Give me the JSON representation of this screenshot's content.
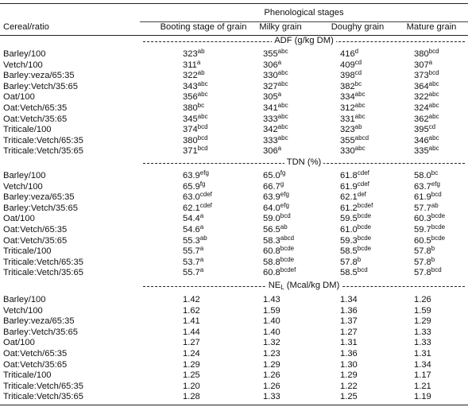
{
  "header": {
    "first_col": "Cereal/ratio",
    "group_title": "Phenological stages",
    "stages": [
      "Booting stage of grain",
      "Milky grain",
      "Doughy grain",
      "Mature grain"
    ]
  },
  "rows": [
    "Barley/100",
    "Vetch/100",
    "Barley:veza/65:35",
    "Barley:Vetch/35:65",
    "Oat/100",
    "Oat:Vetch/65:35",
    "Oat:Vetch/35:65",
    "Triticale/100",
    "Triticale:Vetch/65:35",
    "Triticale:Vetch/35:65"
  ],
  "sections": [
    {
      "title": "ADF (g/kg DM)",
      "title_main": "ADF",
      "title_sub": "",
      "title_unit": "(g/kg DM)",
      "values": [
        [
          [
            "323",
            "ab"
          ],
          [
            "355",
            "abc"
          ],
          [
            "416",
            "d"
          ],
          [
            "380",
            "bcd"
          ]
        ],
        [
          [
            "311",
            "a"
          ],
          [
            "306",
            "a"
          ],
          [
            "409",
            "cd"
          ],
          [
            "307",
            "a"
          ]
        ],
        [
          [
            "322",
            "ab"
          ],
          [
            "330",
            "abc"
          ],
          [
            "398",
            "cd"
          ],
          [
            "373",
            "bcd"
          ]
        ],
        [
          [
            "343",
            "abc"
          ],
          [
            "327",
            "abc"
          ],
          [
            "382",
            "bc"
          ],
          [
            "364",
            "abc"
          ]
        ],
        [
          [
            "356",
            "abc"
          ],
          [
            "305",
            "a"
          ],
          [
            "334",
            "abc"
          ],
          [
            "322",
            "abc"
          ]
        ],
        [
          [
            "380",
            "bc"
          ],
          [
            "341",
            "abc"
          ],
          [
            "312",
            "abc"
          ],
          [
            "324",
            "abc"
          ]
        ],
        [
          [
            "345",
            "abc"
          ],
          [
            "333",
            "abc"
          ],
          [
            "331",
            "abc"
          ],
          [
            "362",
            "abc"
          ]
        ],
        [
          [
            "374",
            "bcd"
          ],
          [
            "342",
            "abc"
          ],
          [
            "323",
            "ab"
          ],
          [
            "395",
            "cd"
          ]
        ],
        [
          [
            "380",
            "bcd"
          ],
          [
            "333",
            "abc"
          ],
          [
            "355",
            "abcd"
          ],
          [
            "346",
            "abc"
          ]
        ],
        [
          [
            "371",
            "bcd"
          ],
          [
            "306",
            "a"
          ],
          [
            "330",
            "abc"
          ],
          [
            "335",
            "abc"
          ]
        ]
      ]
    },
    {
      "title": "TDN (%)",
      "title_main": "TDN",
      "title_sub": "",
      "title_unit": "(%)",
      "values": [
        [
          [
            "63.9",
            "efg"
          ],
          [
            "65.0",
            "fg"
          ],
          [
            "61.8",
            "cdef"
          ],
          [
            "58.0",
            "bc"
          ]
        ],
        [
          [
            "65.9",
            "fg"
          ],
          [
            "66.7",
            "g"
          ],
          [
            "61.9",
            "cdef"
          ],
          [
            "63.7",
            "efg"
          ]
        ],
        [
          [
            "63.0",
            "cdef"
          ],
          [
            "63.9",
            "efg"
          ],
          [
            "62.1",
            "def"
          ],
          [
            "61.9",
            "bcd"
          ]
        ],
        [
          [
            "62.1",
            "cdef"
          ],
          [
            "64.0",
            "efg"
          ],
          [
            "61.2",
            "bcdef"
          ],
          [
            "57.7",
            "ab"
          ]
        ],
        [
          [
            "54.4",
            "a"
          ],
          [
            "59.0",
            "bcd"
          ],
          [
            "59.5",
            "bcde"
          ],
          [
            "60.3",
            "bcde"
          ]
        ],
        [
          [
            "54.6",
            "a"
          ],
          [
            "56.5",
            "ab"
          ],
          [
            "61.0",
            "bcde"
          ],
          [
            "59.7",
            "bcde"
          ]
        ],
        [
          [
            "55.3",
            "ab"
          ],
          [
            "58.3",
            "abcd"
          ],
          [
            "59.3",
            "bcde"
          ],
          [
            "60.5",
            "bcde"
          ]
        ],
        [
          [
            "55.7",
            "a"
          ],
          [
            "60.8",
            "bcde"
          ],
          [
            "58.5",
            "bcde"
          ],
          [
            "57.8",
            "b"
          ]
        ],
        [
          [
            "53.7",
            "a"
          ],
          [
            "58.8",
            "bcde"
          ],
          [
            "57.8",
            "b"
          ],
          [
            "57.8",
            "b"
          ]
        ],
        [
          [
            "55.7",
            "a"
          ],
          [
            "60.8",
            "bcdef"
          ],
          [
            "58.5",
            "bcd"
          ],
          [
            "57.8",
            "bcd"
          ]
        ]
      ]
    },
    {
      "title": "NEL (Mcal/kg DM)",
      "title_main": "NE",
      "title_sub": "L",
      "title_unit": "(Mcal/kg DM)",
      "values": [
        [
          [
            "1.42",
            ""
          ],
          [
            "1.43",
            ""
          ],
          [
            "1.34",
            ""
          ],
          [
            "1.26",
            ""
          ]
        ],
        [
          [
            "1.62",
            ""
          ],
          [
            "1.59",
            ""
          ],
          [
            "1.36",
            ""
          ],
          [
            "1.59",
            ""
          ]
        ],
        [
          [
            "1.41",
            ""
          ],
          [
            "1.40",
            ""
          ],
          [
            "1.37",
            ""
          ],
          [
            "1.29",
            ""
          ]
        ],
        [
          [
            "1.44",
            ""
          ],
          [
            "1.40",
            ""
          ],
          [
            "1.27",
            ""
          ],
          [
            "1.33",
            ""
          ]
        ],
        [
          [
            "1.27",
            ""
          ],
          [
            "1.32",
            ""
          ],
          [
            "1.31",
            ""
          ],
          [
            "1.33",
            ""
          ]
        ],
        [
          [
            "1.24",
            ""
          ],
          [
            "1.23",
            ""
          ],
          [
            "1.36",
            ""
          ],
          [
            "1.31",
            ""
          ]
        ],
        [
          [
            "1.29",
            ""
          ],
          [
            "1.29",
            ""
          ],
          [
            "1.30",
            ""
          ],
          [
            "1.34",
            ""
          ]
        ],
        [
          [
            "1.25",
            ""
          ],
          [
            "1.26",
            ""
          ],
          [
            "1.29",
            ""
          ],
          [
            "1.17",
            ""
          ]
        ],
        [
          [
            "1.20",
            ""
          ],
          [
            "1.26",
            ""
          ],
          [
            "1.22",
            ""
          ],
          [
            "1.21",
            ""
          ]
        ],
        [
          [
            "1.28",
            ""
          ],
          [
            "1.33",
            ""
          ],
          [
            "1.25",
            ""
          ],
          [
            "1.19",
            ""
          ]
        ]
      ]
    }
  ]
}
